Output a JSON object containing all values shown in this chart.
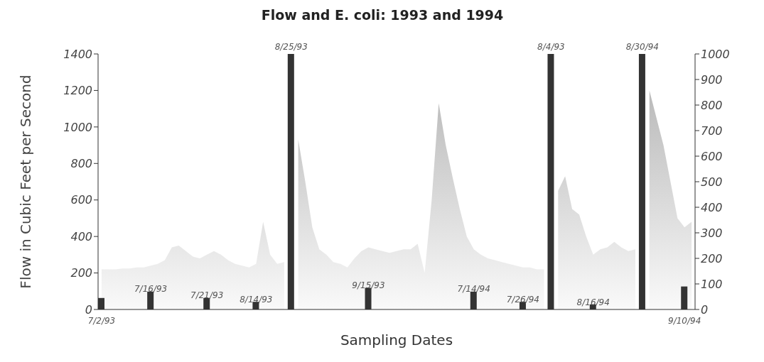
{
  "chart_data": {
    "type": "bar",
    "title": "Flow and E. coli: 1993 and 1994",
    "xlabel": "Sampling Dates",
    "ylabel": "Flow in Cubic Feet per Second",
    "categories": [
      "7/2/93",
      null,
      null,
      null,
      null,
      null,
      null,
      "7/16/93",
      null,
      null,
      null,
      null,
      null,
      null,
      null,
      "7/21/93",
      null,
      null,
      null,
      null,
      null,
      null,
      "8/14/93",
      null,
      null,
      null,
      null,
      "8/25/93",
      null,
      null,
      null,
      null,
      null,
      null,
      null,
      null,
      null,
      null,
      "9/15/93",
      null,
      null,
      null,
      null,
      null,
      null,
      null,
      null,
      null,
      null,
      null,
      null,
      null,
      null,
      "7/14/94",
      null,
      null,
      null,
      null,
      null,
      null,
      "7/26/94",
      null,
      null,
      null,
      "8/4/93",
      null,
      null,
      null,
      null,
      null,
      "8/16/94",
      null,
      null,
      null,
      null,
      null,
      null,
      "8/30/94",
      null,
      null,
      null,
      null,
      null,
      "9/10/94",
      null
    ],
    "series": [
      {
        "type": "area",
        "color": "#8c8c8c",
        "values": [
          220,
          220,
          220,
          225,
          225,
          230,
          230,
          240,
          250,
          270,
          340,
          350,
          320,
          290,
          280,
          300,
          320,
          300,
          270,
          250,
          240,
          230,
          250,
          480,
          300,
          250,
          260,
          null,
          930,
          700,
          450,
          330,
          300,
          260,
          250,
          230,
          280,
          320,
          340,
          330,
          320,
          310,
          320,
          330,
          330,
          360,
          200,
          600,
          1130,
          900,
          720,
          550,
          400,
          330,
          300,
          280,
          270,
          260,
          250,
          240,
          230,
          230,
          220,
          220,
          null,
          650,
          730,
          550,
          520,
          400,
          300,
          330,
          340,
          370,
          340,
          320,
          330,
          null,
          1200,
          1050,
          900,
          700,
          500,
          450,
          480
        ]
      },
      {
        "axis": "y2",
        "color": "#333333",
        "values": [
          45,
          null,
          null,
          null,
          null,
          null,
          null,
          70,
          null,
          null,
          null,
          null,
          null,
          null,
          null,
          45,
          null,
          null,
          null,
          null,
          null,
          null,
          30,
          null,
          null,
          null,
          null,
          1000,
          null,
          null,
          null,
          null,
          null,
          null,
          null,
          null,
          null,
          null,
          85,
          null,
          null,
          null,
          null,
          null,
          null,
          null,
          null,
          null,
          null,
          null,
          null,
          null,
          null,
          70,
          null,
          null,
          null,
          null,
          null,
          null,
          30,
          null,
          null,
          null,
          1000,
          null,
          null,
          null,
          null,
          null,
          20,
          null,
          null,
          null,
          null,
          null,
          null,
          1000,
          null,
          null,
          null,
          null,
          null,
          90,
          null
        ]
      }
    ],
    "ylim": [
      0,
      1400
    ],
    "yticks": [
      0,
      200,
      400,
      600,
      800,
      1000,
      1200,
      1400
    ],
    "y2lim": [
      0,
      1000
    ],
    "y2ticks": [
      0,
      100,
      200,
      300,
      400,
      500,
      600,
      700,
      800,
      900,
      1000
    ],
    "grid": false,
    "legend": false
  }
}
